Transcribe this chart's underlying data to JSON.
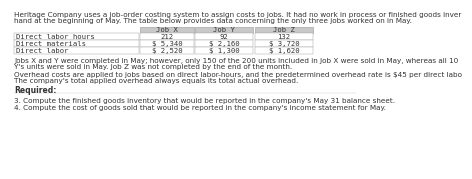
{
  "intro_line1": "Heritage Company uses a job-order costing system to assign costs to jobs. It had no work in process or finished goods inver",
  "intro_line2": "hand at the beginning of May. The table below provides data concerning the only three jobs worked on in May.",
  "table_headers": [
    "",
    "Job X",
    "Job Y",
    "Job Z"
  ],
  "table_rows": [
    [
      "Direct labor hours",
      "212",
      "92",
      "132"
    ],
    [
      "Direct materials",
      "$ 5,340",
      "$ 2,160",
      "$ 3,720"
    ],
    [
      "Direct labor",
      "$ 2,520",
      "$ 1,300",
      "$ 1,620"
    ]
  ],
  "para1_line1": "Jobs X and Y were completed in May; however, only 150 of the 200 units included in Job X were sold in May, whereas all 10",
  "para1_line2": "Y's units were sold in May. Job Z was not completed by the end of the month.",
  "para2_line1": "Overhead costs are applied to jobs based on direct labor-hours, and the predetermined overhead rate is $45 per direct labo",
  "para2_line2": "The company's total applied overhead always equals its total actual overhead.",
  "required_label": "Required:",
  "req3": "3. Compute the finished goods inventory that would be reported in the company's May 31 balance sheet.",
  "req4": "4. Compute the cost of goods sold that would be reported in the company's income statement for May.",
  "text_color": "#333333",
  "table_border_color": "#999999",
  "table_header_bg": "#c8c8c8",
  "font_size": 5.2,
  "font_size_required": 5.5
}
